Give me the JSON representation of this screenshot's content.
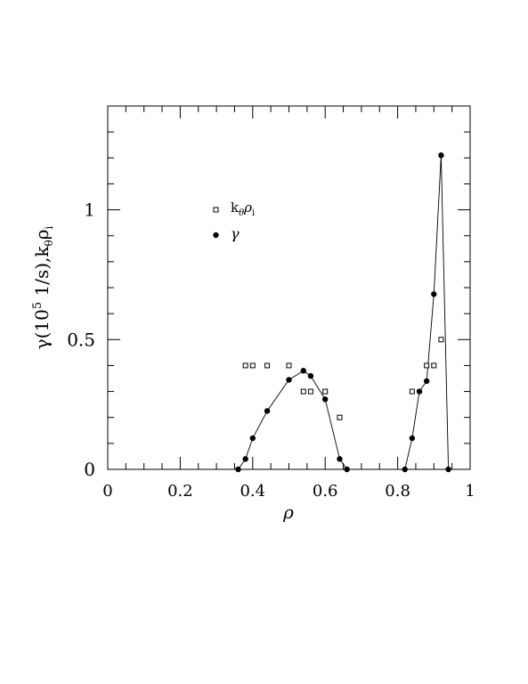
{
  "chart_data": {
    "type": "scatter",
    "xlabel": "ρ",
    "ylabel": {
      "pre": "γ(10",
      "exp": "5",
      "mid": " 1/s),k",
      "sub1": "θ",
      "rho": "ρ",
      "sub2": "i"
    },
    "xlim": [
      0,
      1
    ],
    "ylim": [
      0,
      1.4
    ],
    "x_ticks": [
      0,
      0.2,
      0.4,
      0.6,
      0.8,
      1
    ],
    "x_tick_labels": [
      "0",
      "0.2",
      "0.4",
      "0.6",
      "0.8",
      "1"
    ],
    "y_ticks": [
      0,
      0.5,
      1
    ],
    "y_tick_labels": [
      "0",
      "0.5",
      "1"
    ],
    "grid": false,
    "legend_position": "upper-left",
    "legend": [
      {
        "label_main": "k",
        "label_sub1": "θ",
        "label_rho": "ρ",
        "label_sub2": "i",
        "marker": "open-square"
      },
      {
        "label_main": "γ",
        "marker": "filled-circle"
      }
    ],
    "series": [
      {
        "name": "kθρi",
        "marker": "open-square",
        "line": false,
        "points": [
          [
            0.38,
            0.4
          ],
          [
            0.4,
            0.4
          ],
          [
            0.44,
            0.4
          ],
          [
            0.5,
            0.4
          ],
          [
            0.54,
            0.3
          ],
          [
            0.56,
            0.3
          ],
          [
            0.6,
            0.3
          ],
          [
            0.64,
            0.2
          ],
          [
            0.84,
            0.3
          ],
          [
            0.88,
            0.4
          ],
          [
            0.9,
            0.4
          ],
          [
            0.92,
            0.5
          ]
        ]
      },
      {
        "name": "γ",
        "marker": "filled-circle",
        "line": true,
        "points": [
          [
            0.36,
            0.0
          ],
          [
            0.38,
            0.04
          ],
          [
            0.4,
            0.12
          ],
          [
            0.44,
            0.225
          ],
          [
            0.5,
            0.345
          ],
          [
            0.54,
            0.38
          ],
          [
            0.56,
            0.36
          ],
          [
            0.6,
            0.27
          ],
          [
            0.64,
            0.04
          ],
          [
            0.66,
            0.0
          ],
          [
            0.82,
            0.0
          ],
          [
            0.84,
            0.12
          ],
          [
            0.86,
            0.3
          ],
          [
            0.88,
            0.34
          ],
          [
            0.9,
            0.675
          ],
          [
            0.92,
            1.21
          ],
          [
            0.94,
            0.0
          ]
        ]
      }
    ]
  }
}
